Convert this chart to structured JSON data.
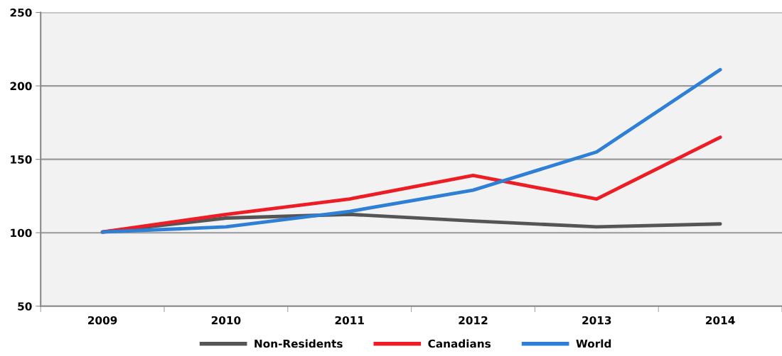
{
  "chart_data": {
    "type": "line",
    "categories": [
      "2009",
      "2010",
      "2011",
      "2012",
      "2013",
      "2014"
    ],
    "series": [
      {
        "name": "Non-Residents",
        "color": "#555555",
        "values": [
          100.5,
          110,
          112.5,
          108,
          104,
          106
        ]
      },
      {
        "name": "Canadians",
        "color": "#ee1c25",
        "values": [
          100.5,
          112.5,
          123,
          139,
          123,
          165
        ]
      },
      {
        "name": "World",
        "color": "#2e7fd6",
        "values": [
          100.5,
          104,
          114.5,
          129,
          155,
          211
        ]
      }
    ],
    "ylim": [
      50,
      250
    ],
    "yticks": [
      50,
      100,
      150,
      200,
      250
    ],
    "grid": "y",
    "legend": "bottom",
    "marker": "none",
    "line_style": "solid"
  }
}
